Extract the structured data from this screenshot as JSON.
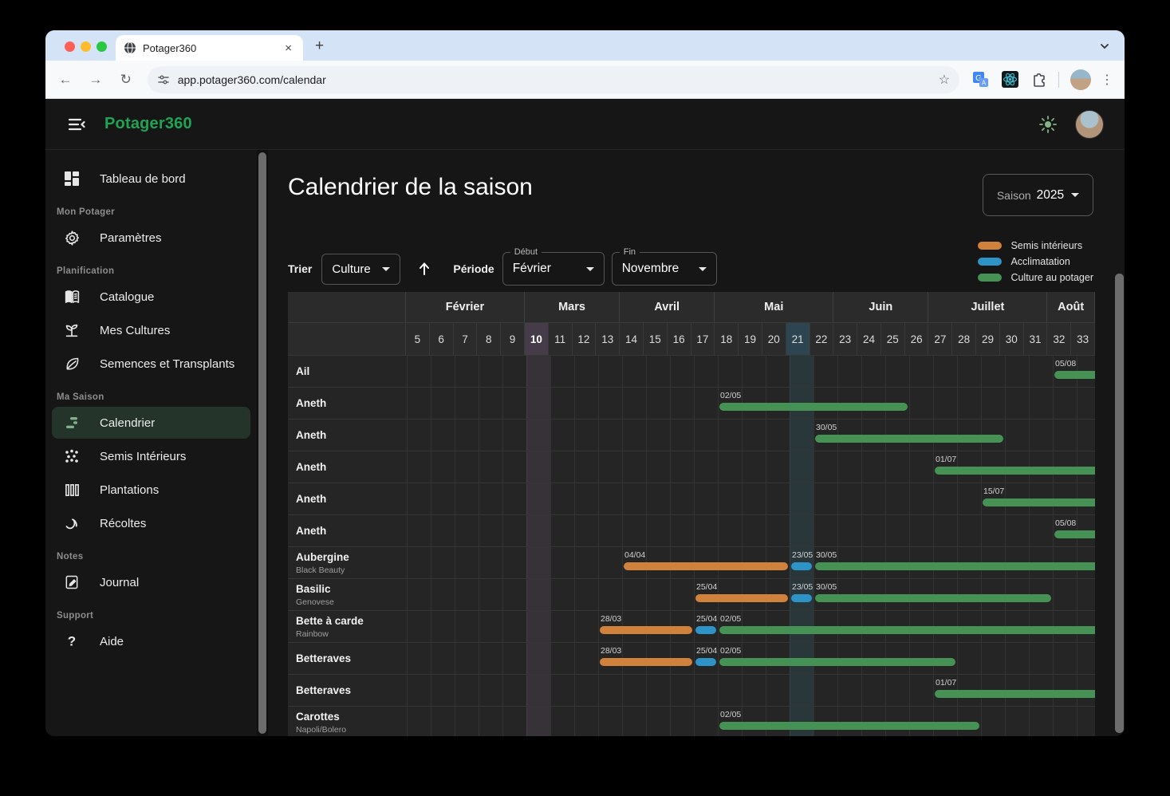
{
  "browser": {
    "tab_title": "Potager360",
    "url": "app.potager360.com/calendar"
  },
  "app": {
    "logo": "Potager360",
    "sidebar": {
      "sections": [
        {
          "label": "",
          "items": [
            {
              "icon": "dashboard",
              "label": "Tableau de bord",
              "active": false
            }
          ]
        },
        {
          "label": "Mon Potager",
          "items": [
            {
              "icon": "gear",
              "label": "Paramètres",
              "active": false
            }
          ]
        },
        {
          "label": "Planification",
          "items": [
            {
              "icon": "book",
              "label": "Catalogue",
              "active": false
            },
            {
              "icon": "sprout",
              "label": "Mes Cultures",
              "active": false
            },
            {
              "icon": "leaf",
              "label": "Semences et Transplants",
              "active": false
            }
          ]
        },
        {
          "label": "Ma Saison",
          "items": [
            {
              "icon": "gantt",
              "label": "Calendrier",
              "active": true
            },
            {
              "icon": "dots",
              "label": "Semis Intérieurs",
              "active": false
            },
            {
              "icon": "columns",
              "label": "Plantations",
              "active": false
            },
            {
              "icon": "sickle",
              "label": "Récoltes",
              "active": false
            }
          ]
        },
        {
          "label": "Notes",
          "items": [
            {
              "icon": "journal",
              "label": "Journal",
              "active": false
            }
          ]
        },
        {
          "label": "Support",
          "items": [
            {
              "icon": "help",
              "label": "Aide",
              "active": false
            }
          ]
        }
      ]
    },
    "main": {
      "title": "Calendrier de la saison",
      "season_label": "Saison",
      "season_value": "2025",
      "sort_label": "Trier",
      "sort_value": "Culture",
      "period_label": "Période",
      "period_start_label": "Début",
      "period_start_value": "Février",
      "period_end_label": "Fin",
      "period_end_value": "Novembre",
      "legend": [
        {
          "type": "semis",
          "label": "Semis intérieurs"
        },
        {
          "type": "acclimatation",
          "label": "Acclimatation"
        },
        {
          "type": "culture",
          "label": "Culture au potager"
        }
      ]
    }
  },
  "chart_data": {
    "type": "gantt",
    "colors": {
      "semis": "#d0813c",
      "acclimatation": "#2e93c6",
      "culture": "#459254"
    },
    "highlight_colors": {
      "current_week_header": "#463b49",
      "current_week_body": "rgba(173,138,173,0.14)",
      "teal_week_header": "#2c4551",
      "teal_week_body": "rgba(77,158,183,0.15)"
    },
    "first_week": 5,
    "visible_weeks": 29,
    "current_week": 10,
    "teal_week": 21,
    "months": [
      {
        "label": "Février",
        "weeks": 5
      },
      {
        "label": "Mars",
        "weeks": 4
      },
      {
        "label": "Avril",
        "weeks": 4
      },
      {
        "label": "Mai",
        "weeks": 5
      },
      {
        "label": "Juin",
        "weeks": 4
      },
      {
        "label": "Juillet",
        "weeks": 5
      },
      {
        "label": "Août",
        "weeks": 2
      }
    ],
    "rows": [
      {
        "name": "Ail",
        "variety": "",
        "segments": [
          {
            "type": "culture",
            "date": "05/08",
            "start": 32,
            "end": 35
          }
        ]
      },
      {
        "name": "Aneth",
        "variety": "",
        "segments": [
          {
            "type": "culture",
            "date": "02/05",
            "start": 18,
            "end": 26
          }
        ]
      },
      {
        "name": "Aneth",
        "variety": "",
        "segments": [
          {
            "type": "culture",
            "date": "30/05",
            "start": 22,
            "end": 30
          }
        ]
      },
      {
        "name": "Aneth",
        "variety": "",
        "segments": [
          {
            "type": "culture",
            "date": "01/07",
            "start": 27,
            "end": 35
          }
        ]
      },
      {
        "name": "Aneth",
        "variety": "",
        "segments": [
          {
            "type": "culture",
            "date": "15/07",
            "start": 29,
            "end": 35
          }
        ]
      },
      {
        "name": "Aneth",
        "variety": "",
        "segments": [
          {
            "type": "culture",
            "date": "05/08",
            "start": 32,
            "end": 35
          }
        ]
      },
      {
        "name": "Aubergine",
        "variety": "Black Beauty",
        "segments": [
          {
            "type": "semis",
            "date": "04/04",
            "start": 14,
            "end": 21
          },
          {
            "type": "acclimatation",
            "date": "23/05",
            "start": 21,
            "end": 22
          },
          {
            "type": "culture",
            "date": "30/05",
            "start": 22,
            "end": 35
          }
        ]
      },
      {
        "name": "Basilic",
        "variety": "Genovese",
        "segments": [
          {
            "type": "semis",
            "date": "25/04",
            "start": 17,
            "end": 21
          },
          {
            "type": "acclimatation",
            "date": "23/05",
            "start": 21,
            "end": 22
          },
          {
            "type": "culture",
            "date": "30/05",
            "start": 22,
            "end": 32
          }
        ]
      },
      {
        "name": "Bette à carde",
        "variety": "Rainbow",
        "segments": [
          {
            "type": "semis",
            "date": "28/03",
            "start": 13,
            "end": 17
          },
          {
            "type": "acclimatation",
            "date": "25/04",
            "start": 17,
            "end": 18
          },
          {
            "type": "culture",
            "date": "02/05",
            "start": 18,
            "end": 35
          }
        ]
      },
      {
        "name": "Betteraves",
        "variety": "",
        "segments": [
          {
            "type": "semis",
            "date": "28/03",
            "start": 13,
            "end": 17
          },
          {
            "type": "acclimatation",
            "date": "25/04",
            "start": 17,
            "end": 18
          },
          {
            "type": "culture",
            "date": "02/05",
            "start": 18,
            "end": 28
          }
        ]
      },
      {
        "name": "Betteraves",
        "variety": "",
        "segments": [
          {
            "type": "culture",
            "date": "01/07",
            "start": 27,
            "end": 35
          }
        ]
      },
      {
        "name": "Carottes",
        "variety": "Napoli/Bolero",
        "segments": [
          {
            "type": "culture",
            "date": "02/05",
            "start": 18,
            "end": 29
          }
        ]
      }
    ]
  }
}
